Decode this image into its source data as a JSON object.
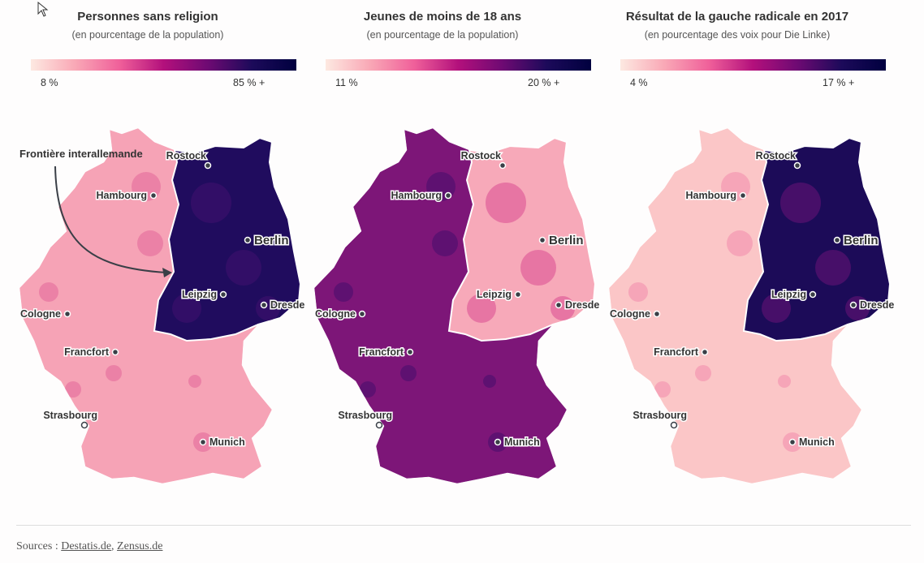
{
  "panels": [
    {
      "title": "Personnes sans religion",
      "subtitle": "(en pourcentage de la population)",
      "legend_min": "8 %",
      "legend_max": "85 % +",
      "west_color": "#f6a3b6",
      "east_color": "#200c5e",
      "west_alt": "#e56a9b",
      "east_alt": "#3b0f6b"
    },
    {
      "title": "Jeunes de moins de 18 ans",
      "subtitle": "(en pourcentage de la population)",
      "legend_min": "11 %",
      "legend_max": "20 % +",
      "west_color": "#7d1678",
      "east_color": "#f7a9b9",
      "west_alt": "#4a0f6d",
      "east_alt": "#e0609a"
    },
    {
      "title": "Résultat de la gauche radicale en 2017",
      "subtitle": "(en pourcentage des voix pour Die Linke)",
      "legend_min": "4 %",
      "legend_max": "17 % +",
      "west_color": "#fbc6c7",
      "east_color": "#1c0b58",
      "west_alt": "#f390ae",
      "east_alt": "#5a1170"
    }
  ],
  "legend_colors": [
    "#fde9e1",
    "#f9a8b6",
    "#f0609a",
    "#b3107c",
    "#6e0a73",
    "#1c0a5a",
    "#00003f"
  ],
  "cities": {
    "rostock": "Rostock",
    "hambourg": "Hambourg",
    "berlin": "Berlin",
    "leipzig": "Leipzig",
    "dresde": "Dresde",
    "cologne": "Cologne",
    "francfort": "Francfort",
    "strasbourg": "Strasbourg",
    "munich": "Munich"
  },
  "annotation": "Frontière interallemande",
  "sources": {
    "label": "Sources :",
    "links": [
      "Destatis.de",
      "Zensus.de"
    ]
  }
}
